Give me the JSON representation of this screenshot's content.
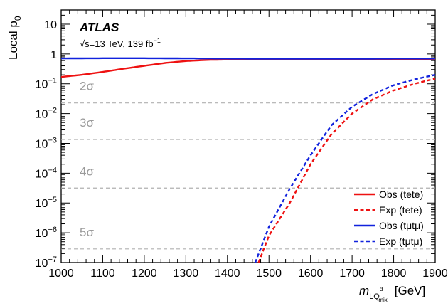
{
  "chart_data": {
    "type": "line",
    "xlabel": "m",
    "xlabel_sub": "LQ",
    "xlabel_sup": "d",
    "xlabel_subsub": "mix",
    "xlabel_unit": "[GeV]",
    "ylabel_main": "Local p",
    "ylabel_sub": "0",
    "xlim": [
      1000,
      1900
    ],
    "ylim": [
      1e-07,
      30
    ],
    "y_scale": "log",
    "grid": false,
    "legend_position": "bottom-right",
    "x_ticks": [
      1000,
      1100,
      1200,
      1300,
      1400,
      1500,
      1600,
      1700,
      1800,
      1900
    ],
    "x_tick_labels": [
      "1000",
      "1100",
      "1200",
      "1300",
      "1400",
      "1500",
      "1600",
      "1700",
      "1800",
      "1900"
    ],
    "y_ticks": [
      {
        "v": 10,
        "base": "10",
        "exp": ""
      },
      {
        "v": 1,
        "base": "1",
        "exp": ""
      },
      {
        "v": 0.1,
        "base": "10",
        "exp": "−1"
      },
      {
        "v": 0.01,
        "base": "10",
        "exp": "−2"
      },
      {
        "v": 0.001,
        "base": "10",
        "exp": "−3"
      },
      {
        "v": 0.0001,
        "base": "10",
        "exp": "−4"
      },
      {
        "v": 1e-05,
        "base": "10",
        "exp": "−5"
      },
      {
        "v": 1e-06,
        "base": "10",
        "exp": "−6"
      },
      {
        "v": 1e-07,
        "base": "10",
        "exp": "−7"
      }
    ],
    "annotations": {
      "experiment": "ATLAS",
      "energy_prefix": "√s=13 TeV, 139 fb",
      "energy_sup": "−1"
    },
    "sigma_lines": [
      {
        "label": "2σ",
        "p": 0.02275
      },
      {
        "label": "3σ",
        "p": 0.00135
      },
      {
        "label": "4σ",
        "p": 3.17e-05
      },
      {
        "label": "5σ",
        "p": 2.87e-07
      }
    ],
    "series": [
      {
        "name": "Obs (tete)",
        "color": "#ee1111",
        "style": "solid",
        "x": [
          1000,
          1050,
          1100,
          1150,
          1200,
          1250,
          1300,
          1350,
          1400,
          1450,
          1500,
          1600,
          1700,
          1800,
          1900
        ],
        "y": [
          0.17,
          0.2,
          0.25,
          0.32,
          0.4,
          0.5,
          0.58,
          0.63,
          0.65,
          0.66,
          0.66,
          0.66,
          0.67,
          0.68,
          0.68
        ]
      },
      {
        "name": "Exp (tete)",
        "color": "#ee1111",
        "style": "dashed",
        "x": [
          1475,
          1500,
          1550,
          1600,
          1650,
          1700,
          1750,
          1800,
          1850,
          1900
        ],
        "y": [
          1e-07,
          8e-07,
          1e-05,
          0.0002,
          0.002,
          0.01,
          0.03,
          0.06,
          0.1,
          0.15
        ]
      },
      {
        "name": "Obs (tμtμ)",
        "color": "#1122dd",
        "style": "solid",
        "x": [
          1000,
          1100,
          1200,
          1300,
          1400,
          1500,
          1600,
          1700,
          1800,
          1900
        ],
        "y": [
          0.71,
          0.72,
          0.72,
          0.71,
          0.7,
          0.69,
          0.69,
          0.69,
          0.7,
          0.7
        ]
      },
      {
        "name": "Exp (tμtμ)",
        "color": "#1122dd",
        "style": "dashed",
        "x": [
          1467,
          1500,
          1550,
          1600,
          1650,
          1700,
          1750,
          1800,
          1850,
          1900
        ],
        "y": [
          1e-07,
          1.6e-06,
          3e-05,
          0.0004,
          0.004,
          0.017,
          0.045,
          0.09,
          0.14,
          0.2
        ]
      }
    ]
  }
}
